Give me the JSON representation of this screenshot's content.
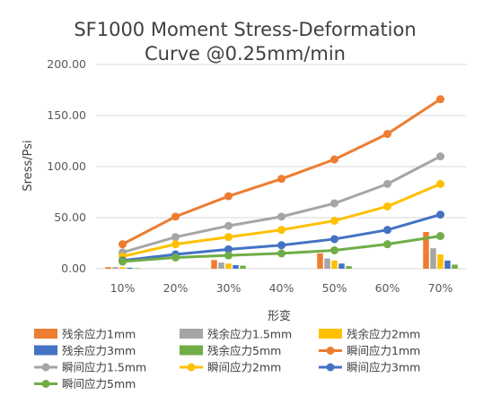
{
  "chart_data": {
    "type": "bar",
    "title_line1": "SF1000 Moment Stress-Deformation",
    "title_line2": "Curve @0.25mm/min",
    "xlabel": "形变",
    "ylabel": "Sress/Psi",
    "ylim": [
      0,
      200
    ],
    "yticks": [
      "0.00",
      "50.00",
      "100.00",
      "150.00",
      "200.00"
    ],
    "categories": [
      "10%",
      "20%",
      "30%",
      "40%",
      "50%",
      "60%",
      "70%"
    ],
    "grid": true,
    "legend_position": "bottom",
    "bar_series": [
      {
        "name": "残余应力1mm",
        "color": "#ED7D31",
        "values": [
          1.5,
          null,
          8.5,
          null,
          15,
          null,
          36
        ]
      },
      {
        "name": "残余应力1.5mm",
        "color": "#A5A5A5",
        "values": [
          1.5,
          null,
          6,
          null,
          10,
          null,
          20
        ]
      },
      {
        "name": "残余应力2mm",
        "color": "#FFC000",
        "values": [
          1.5,
          null,
          5,
          null,
          8,
          null,
          14
        ]
      },
      {
        "name": "残余应力3mm",
        "color": "#4472C4",
        "values": [
          1,
          null,
          3.5,
          null,
          5,
          null,
          8
        ]
      },
      {
        "name": "残余应力5mm",
        "color": "#70AD47",
        "values": [
          0.5,
          null,
          3,
          null,
          2.5,
          null,
          4
        ]
      }
    ],
    "line_series": [
      {
        "name": "瞬间应力1mm",
        "color": "#ED7D31",
        "values": [
          24,
          51,
          71,
          88,
          107,
          132,
          166
        ]
      },
      {
        "name": "瞬间应力1.5mm",
        "color": "#A5A5A5",
        "values": [
          16,
          31,
          42,
          51,
          64,
          83,
          110
        ]
      },
      {
        "name": "瞬间应力2mm",
        "color": "#FFC000",
        "values": [
          12,
          24,
          31,
          38,
          47,
          61,
          83
        ]
      },
      {
        "name": "瞬间应力3mm",
        "color": "#4472C4",
        "values": [
          8,
          14,
          19,
          23,
          29,
          38,
          53
        ]
      },
      {
        "name": "瞬间应力5mm",
        "color": "#70AD47",
        "values": [
          7,
          11,
          13,
          15,
          18,
          24,
          32
        ]
      }
    ]
  }
}
